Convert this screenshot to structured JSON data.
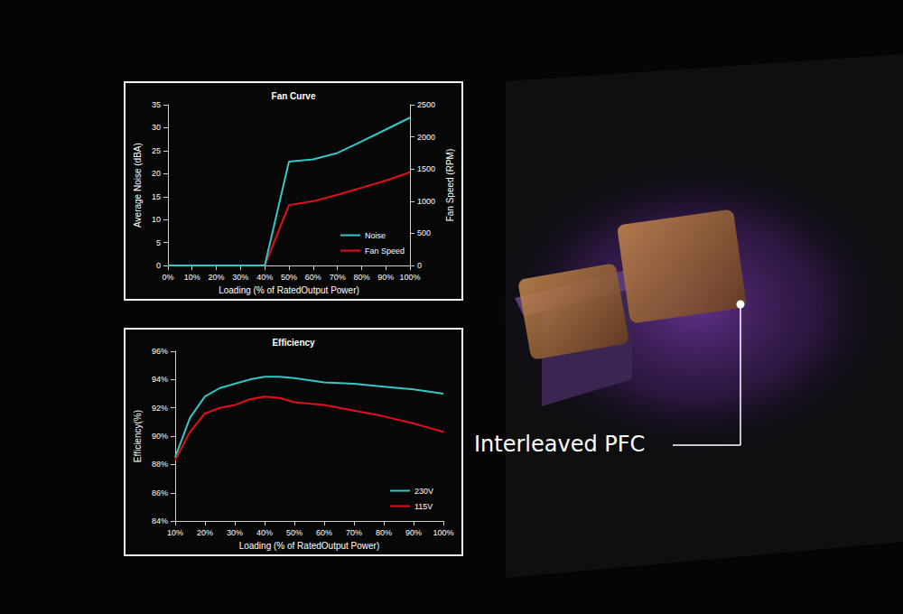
{
  "chart_data": [
    {
      "type": "line",
      "title": "Fan Curve",
      "x_label": "Loading (% of RatedOutput Power)",
      "y_label": "Average Noise (dBA)",
      "y2_label": "Fan Speed (RPM)",
      "x": [
        0,
        10,
        20,
        30,
        40,
        50,
        60,
        70,
        80,
        90,
        100
      ],
      "xlim": [
        0,
        100
      ],
      "xticks": [
        {
          "value": 0,
          "label": "0%"
        },
        {
          "value": 10,
          "label": "10%"
        },
        {
          "value": 20,
          "label": "20%"
        },
        {
          "value": 30,
          "label": "30%"
        },
        {
          "value": 40,
          "label": "40%"
        },
        {
          "value": 50,
          "label": "50%"
        },
        {
          "value": 60,
          "label": "60%"
        },
        {
          "value": 70,
          "label": "70%"
        },
        {
          "value": 80,
          "label": "80%"
        },
        {
          "value": 90,
          "label": "90%"
        },
        {
          "value": 100,
          "label": "100%"
        }
      ],
      "ylim": [
        0,
        35
      ],
      "yticks": [
        0,
        5,
        10,
        15,
        20,
        25,
        30,
        35
      ],
      "y2lim": [
        0,
        2500
      ],
      "y2ticks": [
        0,
        500,
        1000,
        1500,
        2000,
        2500
      ],
      "grid": false,
      "legend": "lower right",
      "series": [
        {
          "name": "Noise",
          "color": "#35c6c6",
          "marker": "none",
          "line_style": "solid",
          "values": [
            0,
            0,
            0,
            0,
            0,
            22.6,
            23.1,
            24.5,
            27.0,
            29.6,
            32.2
          ]
        },
        {
          "name": "Fan Speed",
          "color": "#e3101c",
          "marker": "none",
          "line_style": "solid",
          "axis": "y2",
          "values": [
            0,
            0,
            0,
            0,
            0,
            940,
            1000,
            1100,
            1210,
            1320,
            1450
          ]
        }
      ]
    },
    {
      "type": "line",
      "title": "Efficiency",
      "x_label": "Loading (% of RatedOutput Power)",
      "y_label": "Efficiency(%)",
      "x": [
        10,
        15,
        20,
        25,
        30,
        35,
        40,
        45,
        50,
        60,
        70,
        80,
        90,
        100
      ],
      "xlim": [
        10,
        100
      ],
      "xticks": [
        {
          "value": 10,
          "label": "10%"
        },
        {
          "value": 20,
          "label": "20%"
        },
        {
          "value": 30,
          "label": "30%"
        },
        {
          "value": 40,
          "label": "40%"
        },
        {
          "value": 50,
          "label": "50%"
        },
        {
          "value": 60,
          "label": "60%"
        },
        {
          "value": 70,
          "label": "70%"
        },
        {
          "value": 80,
          "label": "80%"
        },
        {
          "value": 90,
          "label": "90%"
        },
        {
          "value": 100,
          "label": "100%"
        }
      ],
      "ylim": [
        84,
        96
      ],
      "yticks": [
        {
          "value": 84,
          "label": "84%"
        },
        {
          "value": 86,
          "label": "86%"
        },
        {
          "value": 88,
          "label": "88%"
        },
        {
          "value": 90,
          "label": "90%"
        },
        {
          "value": 92,
          "label": "92%"
        },
        {
          "value": 94,
          "label": "94%"
        },
        {
          "value": 96,
          "label": "96%"
        }
      ],
      "grid": false,
      "legend": "lower right",
      "series": [
        {
          "name": "230V",
          "color": "#35c6c6",
          "marker": "none",
          "line_style": "solid",
          "values": [
            88.5,
            91.3,
            92.8,
            93.4,
            93.7,
            94.0,
            94.2,
            94.2,
            94.1,
            93.8,
            93.7,
            93.5,
            93.3,
            93.0
          ]
        },
        {
          "name": "115V",
          "color": "#e3101c",
          "marker": "none",
          "line_style": "solid",
          "values": [
            88.3,
            90.3,
            91.6,
            92.0,
            92.2,
            92.6,
            92.8,
            92.7,
            92.4,
            92.2,
            91.8,
            91.4,
            90.9,
            90.3
          ]
        }
      ]
    }
  ],
  "annotation": "Interleaved PFC"
}
